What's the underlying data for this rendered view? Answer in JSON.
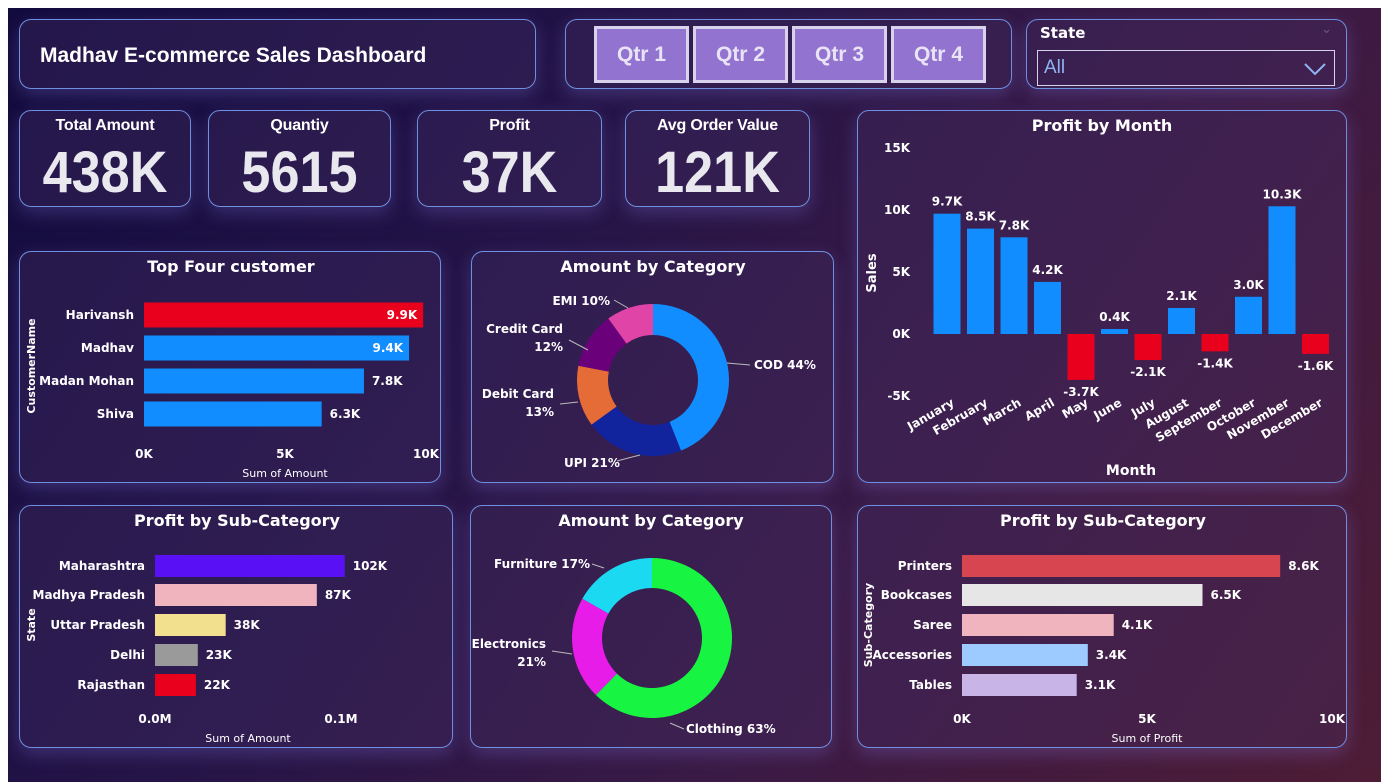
{
  "header": {
    "title": "Madhav E-commerce Sales Dashboard"
  },
  "quarter_slicer": {
    "buttons": [
      "Qtr 1",
      "Qtr 2",
      "Qtr 3",
      "Qtr 4"
    ]
  },
  "state_slicer": {
    "label": "State",
    "value": "All"
  },
  "kpis": [
    {
      "label": "Total Amount",
      "value": "438K"
    },
    {
      "label": "Quantiy",
      "value": "5615"
    },
    {
      "label": "Profit",
      "value": "37K"
    },
    {
      "label": "Avg Order Value",
      "value": "121K"
    }
  ],
  "colors": {
    "blue": "#118dff",
    "red": "#e8001c",
    "panel_border": "#6f8fe0",
    "button": "#9373d0"
  },
  "chart_data": [
    {
      "type": "bar",
      "orientation": "horizontal",
      "title": "Top Four customer",
      "xlabel": "Sum of Amount",
      "ylabel": "CustomerName",
      "categories": [
        "Harivansh",
        "Madhav",
        "Madan Mohan",
        "Shiva"
      ],
      "values": [
        9900,
        9400,
        7800,
        6300
      ],
      "labels": [
        "9.9K",
        "9.4K",
        "7.8K",
        "6.3K"
      ],
      "colors": [
        "#e8001c",
        "#118dff",
        "#118dff",
        "#118dff"
      ],
      "xlim": [
        0,
        10000
      ],
      "xticks": [
        "0K",
        "5K",
        "10K"
      ]
    },
    {
      "type": "pie",
      "donut": true,
      "title": "Amount by Category",
      "slices": [
        {
          "name": "COD",
          "value": 44,
          "label": "COD 44%",
          "color": "#118dff"
        },
        {
          "name": "UPI",
          "value": 21,
          "label": "UPI 21%",
          "color": "#12239e"
        },
        {
          "name": "Debit Card",
          "value": 13,
          "label": "Debit Card 13%",
          "color": "#e66c37"
        },
        {
          "name": "Credit Card",
          "value": 12,
          "label": "Credit Card 12%",
          "color": "#6b007b"
        },
        {
          "name": "EMI",
          "value": 10,
          "label": "EMI 10%",
          "color": "#e044a7"
        }
      ]
    },
    {
      "type": "bar",
      "title": "Profit by Month",
      "xlabel": "Month",
      "ylabel": "Sales",
      "categories": [
        "January",
        "February",
        "March",
        "April",
        "May",
        "June",
        "July",
        "August",
        "September",
        "October",
        "November",
        "December"
      ],
      "values": [
        9700,
        8500,
        7800,
        4200,
        -3700,
        400,
        -2100,
        2100,
        -1400,
        3000,
        10300,
        -1600
      ],
      "labels": [
        "9.7K",
        "8.5K",
        "7.8K",
        "4.2K",
        "-3.7K",
        "0.4K",
        "-2.1K",
        "2.1K",
        "-1.4K",
        "3.0K",
        "10.3K",
        "-1.6K"
      ],
      "ylim": [
        -5000,
        15000
      ],
      "yticks": [
        "-5K",
        "0K",
        "5K",
        "10K",
        "15K"
      ],
      "positive_color": "#118dff",
      "negative_color": "#e8001c"
    },
    {
      "type": "bar",
      "orientation": "horizontal",
      "title": "Profit by Sub-Category",
      "xlabel": "Sum of Amount",
      "ylabel": "State",
      "categories": [
        "Maharashtra",
        "Madhya Pradesh",
        "Uttar Pradesh",
        "Delhi",
        "Rajasthan"
      ],
      "values": [
        102000,
        87000,
        38000,
        23000,
        22000
      ],
      "labels": [
        "102K",
        "87K",
        "38K",
        "23K",
        "22K"
      ],
      "colors": [
        "#5a10f5",
        "#f0b4be",
        "#f2e08e",
        "#9a9a9a",
        "#e8001c"
      ],
      "xlim": [
        0,
        100000
      ],
      "xticks": [
        "0.0M",
        "0.1M"
      ]
    },
    {
      "type": "pie",
      "donut": true,
      "title": "Amount by Category",
      "slices": [
        {
          "name": "Clothing",
          "value": 63,
          "label": "Clothing 63%",
          "color": "#17f542"
        },
        {
          "name": "Electronics",
          "value": 21,
          "label": "Electronics 21%",
          "color": "#e81ce8"
        },
        {
          "name": "Furniture",
          "value": 17,
          "label": "Furniture 17%",
          "color": "#1ad9f0"
        }
      ]
    },
    {
      "type": "bar",
      "orientation": "horizontal",
      "title": "Profit by Sub-Category",
      "xlabel": "Sum of Profit",
      "ylabel": "Sub-Category",
      "categories": [
        "Printers",
        "Bookcases",
        "Saree",
        "Accessories",
        "Tables"
      ],
      "values": [
        8600,
        6500,
        4100,
        3400,
        3100
      ],
      "labels": [
        "8.6K",
        "6.5K",
        "4.1K",
        "3.4K",
        "3.1K"
      ],
      "colors": [
        "#d64550",
        "#e6e6e6",
        "#f0b4be",
        "#9ecbff",
        "#c8b4e6"
      ],
      "xlim": [
        0,
        10000
      ],
      "xticks": [
        "0K",
        "5K",
        "10K"
      ]
    }
  ]
}
